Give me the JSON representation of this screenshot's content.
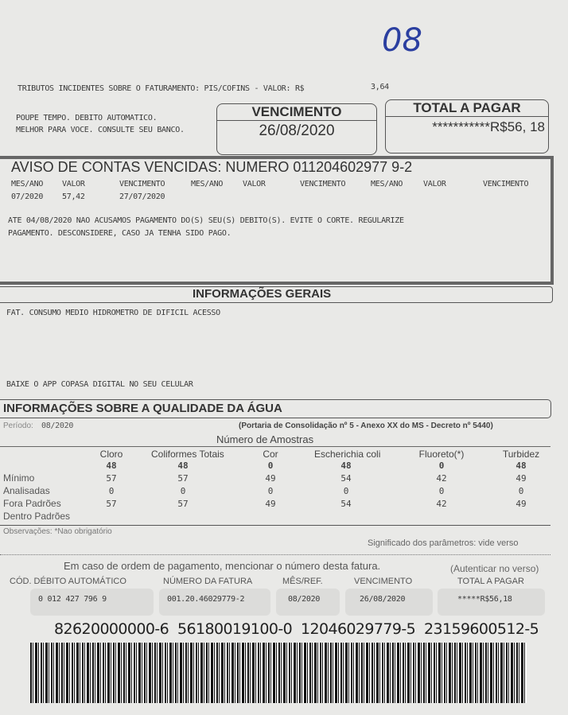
{
  "handwritten_note": "08",
  "tributos": {
    "label": "TRIBUTOS INCIDENTES SOBRE O FATURAMENTO: PIS/COFINS - VALOR: R$",
    "value": "3,64"
  },
  "promo": [
    "POUPE TEMPO. DEBITO AUTOMATICO.",
    "MELHOR PARA VOCE. CONSULTE SEU BANCO."
  ],
  "vencimento": {
    "label": "VENCIMENTO",
    "value": "26/08/2020"
  },
  "total": {
    "label": "TOTAL A PAGAR",
    "value": "***********R$56, 18"
  },
  "aviso": {
    "title": "AVISO DE CONTAS VENCIDAS: NUMERO 011204602977 9-2",
    "headers": [
      "MES/ANO",
      "VALOR",
      "VENCIMENTO",
      "MES/ANO",
      "VALOR",
      "VENCIMENTO",
      "MES/ANO",
      "VALOR",
      "VENCIMENTO"
    ],
    "row": [
      "07/2020",
      "57,42",
      "27/07/2020"
    ],
    "message": [
      "ATE 04/08/2020 NAO ACUSAMOS PAGAMENTO DO(S) SEU(S) DEBITO(S). EVITE O CORTE. REGULARIZE",
      "PAGAMENTO. DESCONSIDERE, CASO JA TENHA SIDO PAGO."
    ]
  },
  "info": {
    "title": "INFORMAÇÕES GERAIS",
    "line1": "FAT. CONSUMO MEDIO HIDROMETRO DE DIFICIL ACESSO",
    "line2": "BAIXE O APP COPASA DIGITAL NO SEU CELULAR"
  },
  "quality": {
    "title": "INFORMAÇÕES SOBRE A QUALIDADE DA ÁGUA",
    "subtitle": "(Portaria de Consolidação nº 5 - Anexo XX do MS - Decreto nº 5440)",
    "period_label": "Período:",
    "period": "08/2020",
    "samples_label": "Número de Amostras",
    "columns": [
      "Cloro",
      "Coliformes Totais",
      "Cor",
      "Escherichia coli",
      "Fluoreto(*)",
      "Turbidez"
    ],
    "overprint": [
      "48",
      "48",
      "0",
      "48",
      "0",
      "48"
    ],
    "rows": [
      {
        "label": "Mínimo",
        "values": [
          "57",
          "57",
          "49",
          "54",
          "42",
          "49"
        ]
      },
      {
        "label": "Analisadas",
        "values": [
          "0",
          "0",
          "0",
          "0",
          "0",
          "0"
        ]
      },
      {
        "label": "Fora Padrões",
        "values": [
          "57",
          "57",
          "49",
          "54",
          "42",
          "49"
        ]
      },
      {
        "label": "Dentro Padrões",
        "values": [
          "",
          "",
          "",
          "",
          "",
          ""
        ]
      }
    ],
    "obs": "Observações: *Nao obrigatório",
    "meaning": "Significado dos parâmetros: vide verso"
  },
  "stub": {
    "notice": "Em caso de ordem de pagamento, mencionar o número desta fatura.",
    "auth": "(Autenticar no verso)",
    "fields": [
      {
        "label": "CÓD. DÉBITO AUTOMÁTICO",
        "value": "0 012 427 796 9"
      },
      {
        "label": "NÚMERO DA FATURA",
        "value": "001.20.46029779-2"
      },
      {
        "label": "MÊS/REF.",
        "value": "08/2020"
      },
      {
        "label": "VENCIMENTO",
        "value": "26/08/2020"
      },
      {
        "label": "TOTAL A PAGAR",
        "value": "*****R$56,18"
      }
    ]
  },
  "barcode_digits": "82620000000-6  56180019100-0  12046029779-5  23159600512-5"
}
